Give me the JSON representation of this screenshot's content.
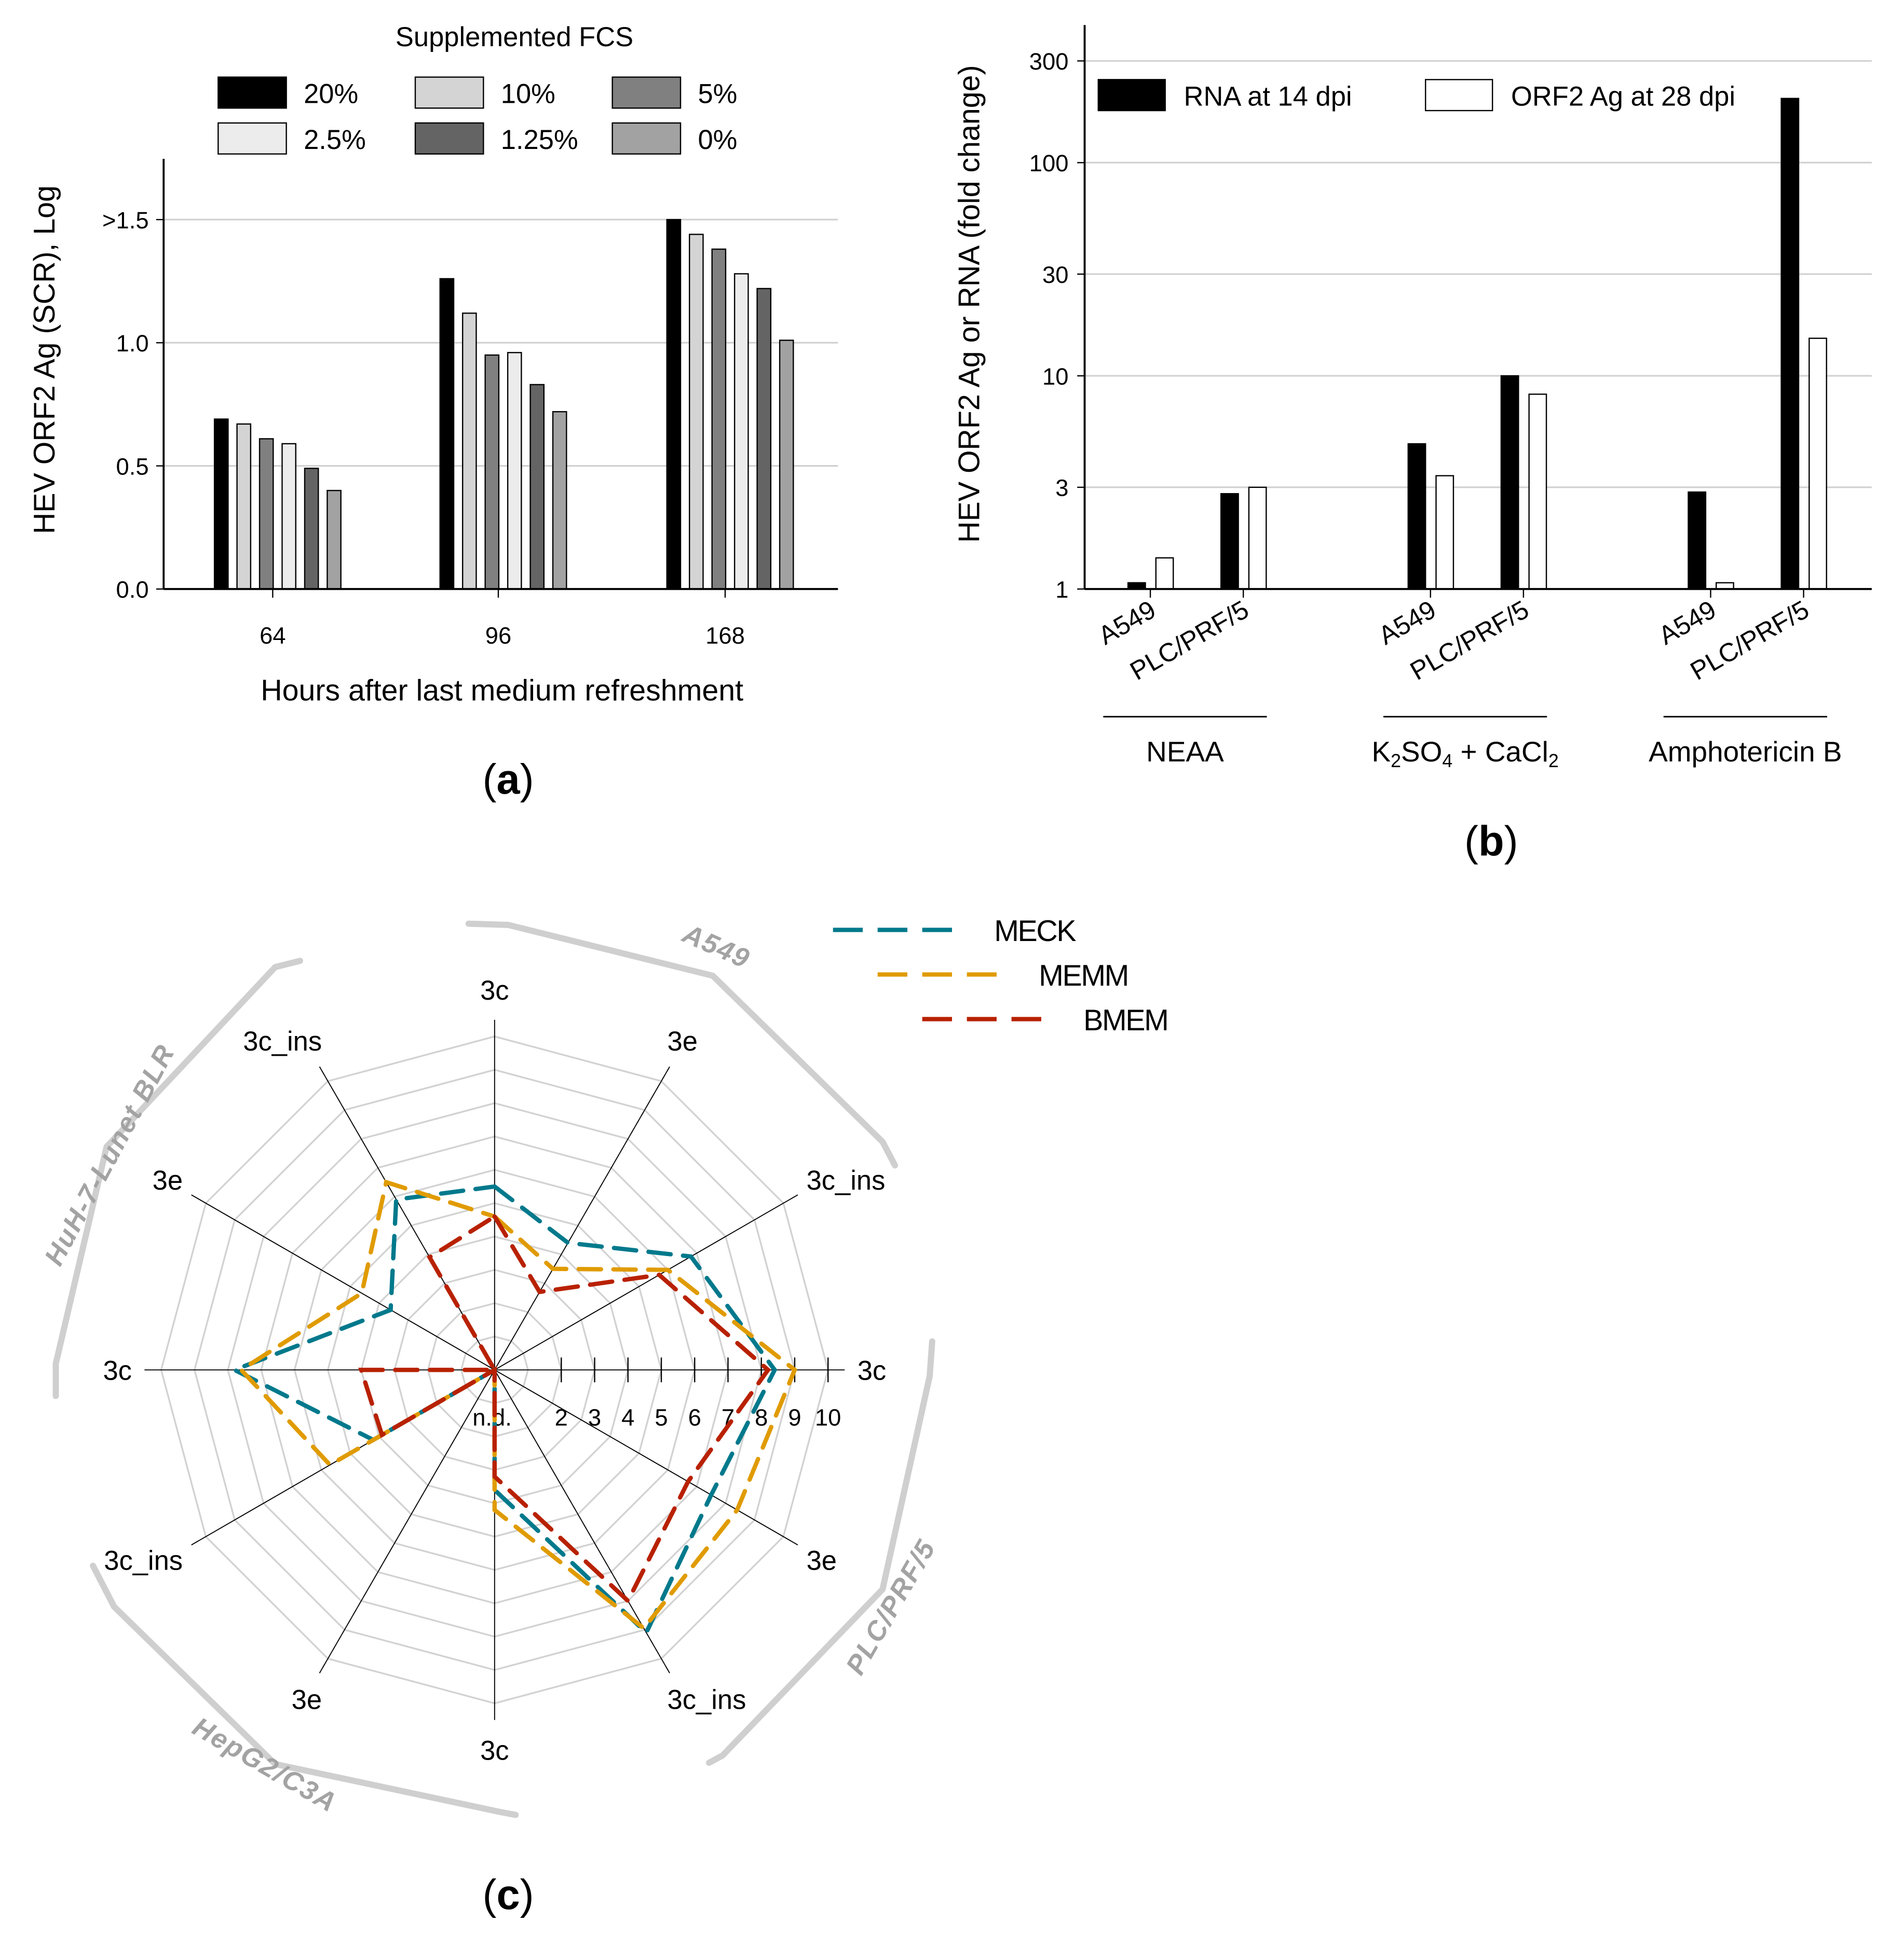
{
  "chart_data": [
    {
      "type": "bar",
      "panel_label": "a",
      "title": "",
      "legend_title": "Supplemented FCS",
      "legend_placement": "top",
      "xlabel": "Hours after last medium refreshment",
      "ylabel": "HEV ORF2 Ag (SCR), Log",
      "categories": [
        "64",
        "96",
        "168"
      ],
      "ylim": [
        0,
        1.75
      ],
      "yticks": [
        0,
        0.5,
        1.0,
        1.5
      ],
      "ytick_labels": [
        "0.0",
        "0.5",
        "1.0",
        ">1.5"
      ],
      "grid": true,
      "series": [
        {
          "name": "20%",
          "color": "#000000",
          "values": [
            0.69,
            1.26,
            1.5
          ]
        },
        {
          "name": "10%",
          "color": "#d4d4d4",
          "values": [
            0.67,
            1.12,
            1.44
          ]
        },
        {
          "name": "5%",
          "color": "#808080",
          "values": [
            0.61,
            0.95,
            1.38
          ]
        },
        {
          "name": "2.5%",
          "color": "#ececec",
          "values": [
            0.59,
            0.96,
            1.28
          ]
        },
        {
          "name": "1.25%",
          "color": "#646464",
          "values": [
            0.49,
            0.83,
            1.22
          ]
        },
        {
          "name": "0%",
          "color": "#a2a2a2",
          "values": [
            0.4,
            0.72,
            1.01
          ]
        }
      ]
    },
    {
      "type": "bar",
      "panel_label": "b",
      "ylabel": "HEV ORF2 Ag or RNA (fold change)",
      "yscale": "log",
      "ylim": [
        1,
        380
      ],
      "yticks": [
        1,
        3,
        10,
        30,
        100,
        300
      ],
      "ytick_labels": [
        "1",
        "3",
        "10",
        "30",
        "100",
        "300"
      ],
      "grid": true,
      "legend_placement": "top",
      "categories": [
        "A549",
        "PLC/PRF/5",
        "A549",
        "PLC/PRF/5",
        "A549",
        "PLC/PRF/5"
      ],
      "groups": [
        {
          "label": "NEAA",
          "parts": [
            {
              "t": "NEAA"
            }
          ]
        },
        {
          "label": "K2SO4 + CaCl2",
          "parts": [
            {
              "t": "K"
            },
            {
              "t": "2",
              "sub": true
            },
            {
              "t": "SO"
            },
            {
              "t": "4",
              "sub": true
            },
            {
              "t": " + CaCl"
            },
            {
              "t": "2",
              "sub": true
            }
          ]
        },
        {
          "label": "Amphotericin B",
          "parts": [
            {
              "t": "Amphotericin B"
            }
          ]
        }
      ],
      "series": [
        {
          "name": "RNA at 14 dpi",
          "color": "#000000",
          "values": [
            1.07,
            2.8,
            4.8,
            10.0,
            2.85,
            200
          ]
        },
        {
          "name": "ORF2 Ag at 28 dpi",
          "color": "#ffffff",
          "values": [
            1.4,
            3.0,
            3.4,
            8.2,
            1.07,
            15
          ]
        }
      ]
    },
    {
      "type": "radar",
      "panel_label": "c",
      "rlim": [
        0,
        10
      ],
      "r_tick_labels": [
        "n.d.",
        "2",
        "3",
        "4",
        "5",
        "6",
        "7",
        "8",
        "9",
        "10"
      ],
      "axes": [
        "3c",
        "3e",
        "3c_ins",
        "3c",
        "3e",
        "3c_ins",
        "3c",
        "3e",
        "3c_ins",
        "3c",
        "3e",
        "3c_ins"
      ],
      "axis_groups": [
        "A549",
        "PLC/PRF/5",
        "HepG2/C3A",
        "HuH-7-Lunet BLR"
      ],
      "legend_placement": "top-right",
      "series": [
        {
          "name": "MECK",
          "color": "#00798c",
          "values": [
            5.5,
            4.4,
            6.8,
            8.4,
            7.5,
            9.1,
            3.6,
            0,
            4.2,
            7.8,
            3.6,
            5.9
          ]
        },
        {
          "name": "MEMM",
          "color": "#e09b00",
          "values": [
            4.6,
            3.5,
            6.0,
            9.0,
            8.4,
            8.95,
            4.2,
            0,
            5.7,
            7.6,
            4.6,
            6.5
          ]
        },
        {
          "name": "BMEM",
          "color": "#b82100",
          "values": [
            4.6,
            2.7,
            5.7,
            8.2,
            6.7,
            8.0,
            3.2,
            0,
            3.9,
            4.0,
            0,
            3.9
          ]
        }
      ]
    }
  ]
}
